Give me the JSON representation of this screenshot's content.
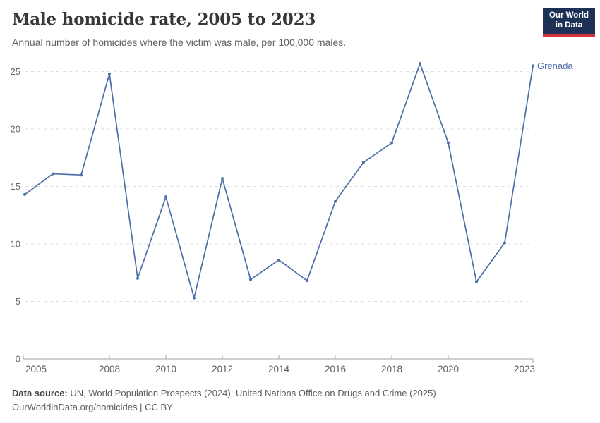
{
  "header": {
    "title": "Male homicide rate, 2005 to 2023",
    "subtitle": "Annual number of homicides where the victim was male, per 100,000 males.",
    "logo": {
      "line1": "Our World",
      "line2": "in Data"
    }
  },
  "chart_data": {
    "type": "line",
    "title": "Male homicide rate, 2005 to 2023",
    "xlabel": "",
    "ylabel": "",
    "xlim": [
      2005,
      2023
    ],
    "ylim": [
      0,
      26
    ],
    "grid": "horizontal-dashed",
    "legend_position": "end-of-line-label",
    "x_ticks": [
      2005,
      2008,
      2010,
      2012,
      2014,
      2016,
      2018,
      2020,
      2023
    ],
    "y_ticks": [
      0,
      5,
      10,
      15,
      20,
      25
    ],
    "series": [
      {
        "name": "Grenada",
        "x": [
          2005,
          2006,
          2007,
          2008,
          2009,
          2010,
          2011,
          2012,
          2013,
          2014,
          2015,
          2016,
          2017,
          2018,
          2019,
          2020,
          2021,
          2022,
          2023
        ],
        "values": [
          14.3,
          16.1,
          16.0,
          24.8,
          7.0,
          14.1,
          5.3,
          15.7,
          6.9,
          8.6,
          6.8,
          13.7,
          17.1,
          18.8,
          25.7,
          18.8,
          6.7,
          10.1,
          25.5
        ]
      }
    ],
    "end_label": "Grenada"
  },
  "footer": {
    "source_label": "Data source:",
    "source_text": " UN, World Population Prospects (2024); United Nations Office on Drugs and Crime (2025)",
    "link_line": "OurWorldinData.org/homicides | CC BY"
  },
  "colors": {
    "line": "#4c6ea8",
    "grid": "#dedede",
    "axis": "#a3a3a3",
    "tick_text": "#666666",
    "title_text": "#383838",
    "subtitle_text": "#616161",
    "logo_bg": "#1d3156",
    "logo_red": "#d13239",
    "entity_label": "#4c6ea8"
  }
}
